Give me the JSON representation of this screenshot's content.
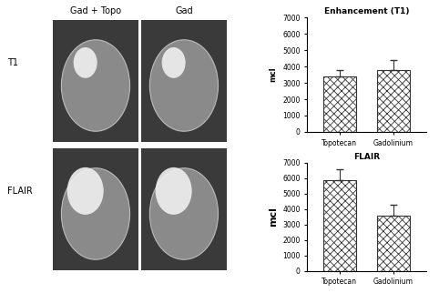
{
  "image_panels": {
    "columns": [
      "Gad + Topo",
      "Gad"
    ],
    "rows": [
      "T1",
      "FLAIR"
    ]
  },
  "chart_data": [
    {
      "type": "bar",
      "title": "Enhancement (T1)",
      "ylabel": "mcl",
      "categories": [
        "Topotecan",
        "Gadolinium"
      ],
      "values": [
        3400,
        3800
      ],
      "error": [
        400,
        600
      ],
      "color": "#333333",
      "ylim": [
        0,
        7000
      ],
      "yticks": [
        0,
        1000,
        2000,
        3000,
        4000,
        5000,
        6000,
        7000
      ]
    },
    {
      "type": "bar",
      "title": "FLAIR",
      "ylabel": "mcl",
      "categories": [
        "Topotecan",
        "Gadolinium"
      ],
      "values": [
        5850,
        3550
      ],
      "error": [
        700,
        750
      ],
      "color": "#333333",
      "ylim": [
        0,
        7000
      ],
      "yticks": [
        0,
        1000,
        2000,
        3000,
        4000,
        5000,
        6000,
        7000
      ]
    }
  ]
}
